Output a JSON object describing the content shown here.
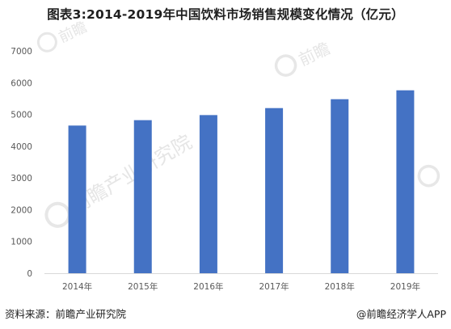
{
  "title": "图表3:2014-2019年中国饮料市场销售规模变化情况（亿元）",
  "footer": {
    "source": "资料来源：前瞻产业研究院",
    "credit": "@前瞻经济学人APP"
  },
  "watermark": {
    "main": "前瞻产业研究院",
    "small": "前瞻"
  },
  "colors": {
    "bar": "#4472c4",
    "axis": "#d9d9d9",
    "text": "#595959"
  },
  "chart_data": {
    "type": "bar",
    "categories": [
      "2014年",
      "2015年",
      "2016年",
      "2017年",
      "2018年",
      "2019年"
    ],
    "values": [
      4650,
      4820,
      4980,
      5200,
      5480,
      5760
    ],
    "ylim": [
      0,
      7000
    ],
    "yticks": [
      0,
      1000,
      2000,
      3000,
      4000,
      5000,
      6000,
      7000
    ],
    "grid": false,
    "legend": "none"
  }
}
